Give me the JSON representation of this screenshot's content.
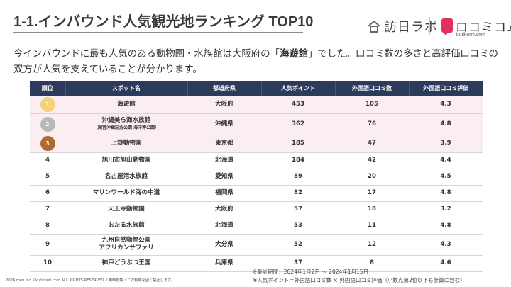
{
  "title": "1-1.インバウンド人気観光地ランキング TOP10",
  "logos": {
    "homon": "訪日ラボ",
    "kuchikomi_main": "ロコミコム",
    "kuchikomi_sub": "kutikomi.com"
  },
  "description": {
    "before": "今インバウンドに最も人気のある動物園・水族館は大阪府の「",
    "highlight": "海遊館",
    "after": "」でした。口コミ数の多さと高評価口コミの双方が人気を支えていることが分かります。"
  },
  "table": {
    "headers": [
      "順位",
      "スポット名",
      "都道府県",
      "人気ポイント",
      "外国語口コミ数",
      "外国語口コミ評価"
    ],
    "rows": [
      {
        "rank": "1",
        "name": "海遊館",
        "sub": "",
        "pref": "大阪府",
        "points": "453",
        "reviews": "105",
        "rating": "4.3"
      },
      {
        "rank": "2",
        "name": "沖縄美ら海水族館",
        "sub": "（国営沖縄記念公園 海洋博公園）",
        "pref": "沖縄県",
        "points": "362",
        "reviews": "76",
        "rating": "4.8"
      },
      {
        "rank": "3",
        "name": "上野動物園",
        "sub": "",
        "pref": "東京都",
        "points": "185",
        "reviews": "47",
        "rating": "3.9"
      },
      {
        "rank": "4",
        "name": "旭川市旭山動物園",
        "sub": "",
        "pref": "北海道",
        "points": "184",
        "reviews": "42",
        "rating": "4.4"
      },
      {
        "rank": "5",
        "name": "名古屋港水族館",
        "sub": "",
        "pref": "愛知県",
        "points": "89",
        "reviews": "20",
        "rating": "4.5"
      },
      {
        "rank": "6",
        "name": "マリンワールド海の中道",
        "sub": "",
        "pref": "福岡県",
        "points": "82",
        "reviews": "17",
        "rating": "4.8"
      },
      {
        "rank": "7",
        "name": "天王寺動物園",
        "sub": "",
        "pref": "大阪府",
        "points": "57",
        "reviews": "18",
        "rating": "3.2"
      },
      {
        "rank": "8",
        "name": "おたる水族館",
        "sub": "",
        "pref": "北海道",
        "points": "53",
        "reviews": "11",
        "rating": "4.8"
      },
      {
        "rank": "9",
        "name": "九州自然動物公園",
        "sub": "アフリカンサファリ",
        "pref": "大分県",
        "points": "52",
        "reviews": "12",
        "rating": "4.3"
      },
      {
        "rank": "10",
        "name": "神戸どうぶつ王国",
        "sub": "",
        "pref": "兵庫県",
        "points": "37",
        "reviews": "8",
        "rating": "4.6"
      }
    ]
  },
  "notes": {
    "period": "※集計期間：2024年1月2日 ～ 2024年1月15日",
    "formula": "※人気ポイント＝外国語口コミ数 × 外国語口コミ評価（小数点第2位以下も計算に含む）"
  },
  "copyright": "2024 mov inc. / kutikomi.com ALL RIGHTS RESERVED. / 無断転載・二次利用を固く禁止します。",
  "colors": {
    "header_bg": "#2c3a5c",
    "gold": "#f3d27a",
    "silver": "#b9b9b9",
    "bronze": "#b06a30",
    "top_row_bg": "#fbeef1",
    "brand_pink": "#e0325c"
  }
}
